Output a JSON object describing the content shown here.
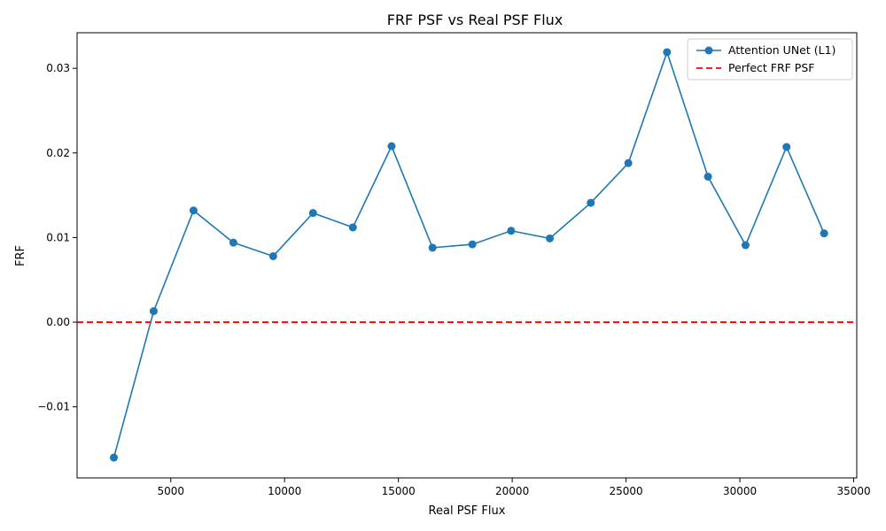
{
  "chart_data": {
    "type": "line",
    "title": "FRF PSF vs Real PSF Flux",
    "xlabel": "Real PSF Flux",
    "ylabel": "FRF",
    "xlim": [
      885,
      35135
    ],
    "ylim": [
      -0.0184,
      0.0342
    ],
    "x_ticks": [
      {
        "value": 5000,
        "label": "5000"
      },
      {
        "value": 10000,
        "label": "10000"
      },
      {
        "value": 15000,
        "label": "15000"
      },
      {
        "value": 20000,
        "label": "20000"
      },
      {
        "value": 25000,
        "label": "25000"
      },
      {
        "value": 30000,
        "label": "30000"
      },
      {
        "value": 35000,
        "label": "35000"
      }
    ],
    "y_ticks": [
      {
        "value": -0.01,
        "label": "−0.01"
      },
      {
        "value": 0.0,
        "label": "0.00"
      },
      {
        "value": 0.01,
        "label": "0.01"
      },
      {
        "value": 0.02,
        "label": "0.02"
      },
      {
        "value": 0.03,
        "label": "0.03"
      }
    ],
    "grid": false,
    "legend_position": "top-right",
    "series": [
      {
        "name": "Attention UNet (L1)",
        "color": "#1f77b4",
        "marker": "circle",
        "x": [
          2500,
          4250,
          6000,
          7750,
          9500,
          11250,
          13000,
          14700,
          16500,
          18250,
          19950,
          21650,
          23450,
          25100,
          26800,
          28600,
          30250,
          32050,
          33700
        ],
        "y": [
          -0.016,
          0.0013,
          0.0132,
          0.0094,
          0.0078,
          0.0129,
          0.0112,
          0.0208,
          0.0088,
          0.0092,
          0.0108,
          0.0099,
          0.0141,
          0.0188,
          0.0319,
          0.0172,
          0.0091,
          0.0207,
          0.0105
        ]
      }
    ],
    "reference_lines": [
      {
        "name": "Perfect FRF PSF",
        "orientation": "horizontal",
        "value": 0.0,
        "color": "#ff0000",
        "style": "dashed"
      }
    ]
  }
}
